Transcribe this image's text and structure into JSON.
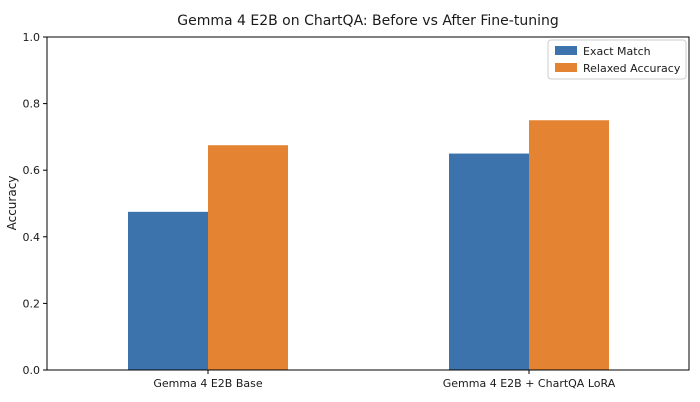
{
  "chart_data": {
    "type": "bar",
    "title": "Gemma 4 E2B on ChartQA: Before vs After Fine-tuning",
    "xlabel": "",
    "ylabel": "Accuracy",
    "categories": [
      "Gemma 4 E2B Base",
      "Gemma 4 E2B + ChartQA LoRA"
    ],
    "series": [
      {
        "name": "Exact Match",
        "values": [
          0.475,
          0.65
        ],
        "color": "#3d73ad"
      },
      {
        "name": "Relaxed Accuracy",
        "values": [
          0.675,
          0.75
        ],
        "color": "#e48331"
      }
    ],
    "ylim": [
      0,
      1.0
    ],
    "yticks": [
      "0.0",
      "0.2",
      "0.4",
      "0.6",
      "0.8",
      "1.0"
    ],
    "grid": false,
    "legend_position": "top-right"
  }
}
